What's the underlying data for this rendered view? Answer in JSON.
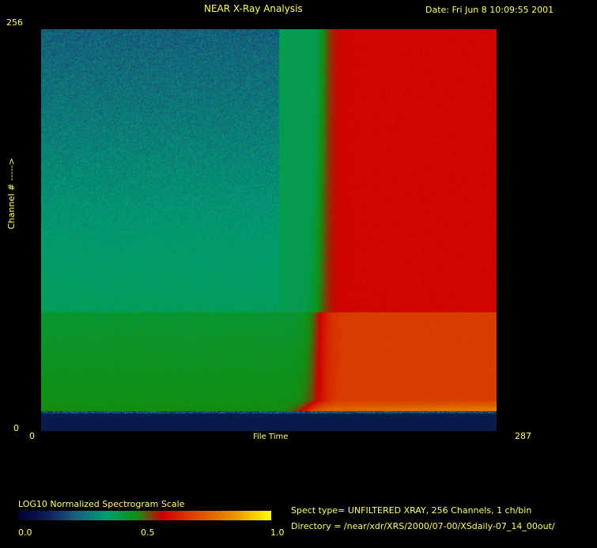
{
  "header": {
    "title": "NEAR X-Ray Analysis",
    "date": "Date: Fri Jun  8 10:09:55 2001"
  },
  "chart_data": {
    "type": "heatmap",
    "title": "NEAR X-Ray Analysis",
    "xlabel": "File Time",
    "ylabel": "Channel # ----->",
    "xlim": [
      0,
      287
    ],
    "ylim": [
      0,
      256
    ],
    "x_ticks": [
      "0",
      "287"
    ],
    "y_ticks": [
      "0",
      "256"
    ],
    "colorbar": {
      "label": "LOG10 Normalized Spectrogram Scale",
      "ticks": [
        "0.0",
        "0.5",
        "1.0"
      ],
      "range": [
        0.0,
        1.0
      ],
      "colors": [
        "#000030",
        "#1a5a80",
        "#00a070",
        "#109010",
        "#d00000",
        "#e07000",
        "#ffff00"
      ]
    }
  },
  "info": {
    "spect_type": "Spect type= UNFILTERED XRAY,  256 Channels,  1 ch/bin",
    "directory": "Directory = /near/xdr/XRS/2000/07-00/XSdaily-07_14_00out/"
  }
}
